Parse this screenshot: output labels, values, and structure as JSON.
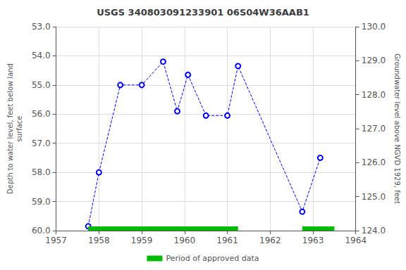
{
  "chart_data": {
    "type": "line",
    "title": "USGS 340803091233901 06S04W36AAB1",
    "ylabel": "Depth to water level, feet below land\nsurface",
    "y2label": "Groundwater level above NGVD 1929, feet",
    "x": [
      1957.75,
      1958.0,
      1958.5,
      1959.0,
      1959.5,
      1959.83,
      1960.08,
      1960.5,
      1961.0,
      1961.25,
      1962.75,
      1963.17
    ],
    "series": [
      {
        "values": [
          59.85,
          58.0,
          55.0,
          55.0,
          54.2,
          55.9,
          54.65,
          56.05,
          56.05,
          54.35,
          59.35,
          57.5
        ],
        "color": "blue",
        "marker": "circle",
        "line_style": "dashed"
      }
    ],
    "spans": [
      {
        "name": "Period of approved data",
        "color": "#00bb00",
        "ranges": [
          [
            1957.75,
            1961.25
          ],
          [
            1962.75,
            1963.5
          ]
        ]
      }
    ],
    "xlim": [
      1957,
      1964
    ],
    "xticks": [
      1957,
      1958,
      1959,
      1960,
      1961,
      1962,
      1963,
      1964
    ],
    "ylim": [
      60.0,
      53.0
    ],
    "yticks": [
      {
        "value": 53.0,
        "label": "53.0"
      },
      {
        "value": 54.0,
        "label": "54.0"
      },
      {
        "value": 55.0,
        "label": "55.0"
      },
      {
        "value": 56.0,
        "label": "56.0"
      },
      {
        "value": 57.0,
        "label": "57.0"
      },
      {
        "value": 58.0,
        "label": "58.0"
      },
      {
        "value": 59.0,
        "label": "59.0"
      },
      {
        "value": 60.0,
        "label": "60.0"
      }
    ],
    "y2lim": [
      124.0,
      130.0
    ],
    "y2ticks": [
      {
        "value": 124.0,
        "label": "124.0"
      },
      {
        "value": 125.0,
        "label": "125.0"
      },
      {
        "value": 126.0,
        "label": "126.0"
      },
      {
        "value": 127.0,
        "label": "127.0"
      },
      {
        "value": 128.0,
        "label": "128.0"
      },
      {
        "value": 129.0,
        "label": "129.0"
      },
      {
        "value": 130.0,
        "label": "130.0"
      }
    ],
    "grid": true,
    "legend": "bottom"
  }
}
